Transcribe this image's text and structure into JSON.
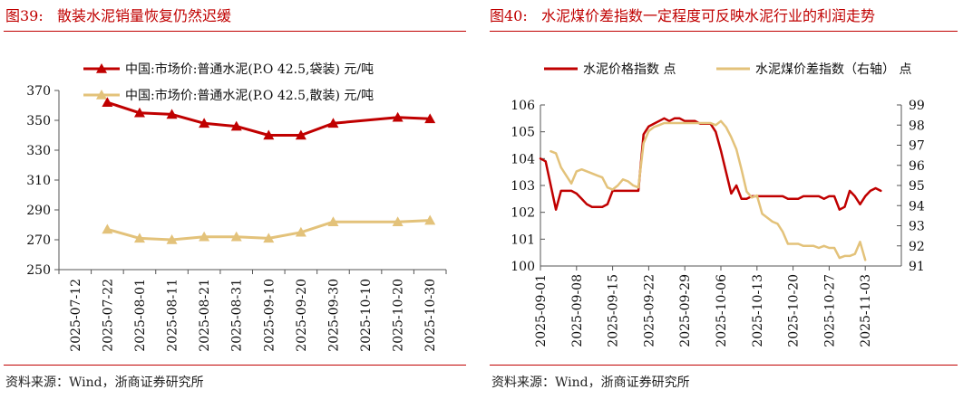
{
  "figure1": {
    "label": "图39:",
    "title": "散装水泥销量恢复仍然迟缓",
    "source": "资料来源：Wind，浙商证券研究所"
  },
  "figure2": {
    "label": "图40:",
    "title": "水泥煤价差指数一定程度可反映水泥行业的利润走势",
    "source": "资料来源：Wind，浙商证券研究所"
  },
  "colors": {
    "red": "#c00000",
    "gold": "#e3c27a",
    "axis": "#555555"
  },
  "chart_data": [
    {
      "type": "line",
      "title": "散装水泥销量恢复仍然迟缓",
      "xlabel": "",
      "ylabel": "",
      "ylim": [
        250,
        370
      ],
      "yticks": [
        250,
        270,
        290,
        310,
        330,
        350,
        370
      ],
      "categories": [
        "2025-07-12",
        "2025-07-22",
        "2025-08-01",
        "2025-08-11",
        "2025-08-21",
        "2025-08-31",
        "2025-09-10",
        "2025-09-20",
        "2025-09-30",
        "2025-10-10",
        "2025-10-20",
        "2025-10-30"
      ],
      "legend_position": "top-left",
      "series": [
        {
          "name": "中国:市场价:普通水泥(P.O 42.5,袋装) 元/吨",
          "color": "#c00000",
          "marker": "triangle",
          "values": [
            null,
            362,
            355,
            354,
            348,
            346,
            340,
            340,
            348,
            null,
            352,
            351
          ]
        },
        {
          "name": "中国:市场价:普通水泥(P.O 42.5,散装) 元/吨",
          "color": "#e3c27a",
          "marker": "triangle",
          "values": [
            null,
            277,
            271,
            270,
            272,
            272,
            271,
            275,
            282,
            null,
            282,
            283
          ]
        }
      ]
    },
    {
      "type": "line",
      "title": "水泥煤价差指数一定程度可反映水泥行业的利润走势",
      "legend_position": "top-left",
      "left_axis": {
        "ylim": [
          100,
          106
        ],
        "ticks": [
          100,
          101,
          102,
          103,
          104,
          105,
          106
        ]
      },
      "right_axis": {
        "ylim": [
          91,
          99
        ],
        "ticks": [
          91,
          92,
          93,
          94,
          95,
          96,
          97,
          98,
          99
        ]
      },
      "xlim": [
        0,
        70
      ],
      "x_tick_positions": [
        0,
        7,
        14,
        21,
        28,
        35,
        42,
        49,
        56,
        63
      ],
      "x_ticks": [
        "2025-09-01",
        "2025-09-08",
        "2025-09-15",
        "2025-09-22",
        "2025-09-29",
        "2025-10-06",
        "2025-10-13",
        "2025-10-20",
        "2025-10-27",
        "2025-11-03"
      ],
      "series": [
        {
          "name": "水泥价格指数 点",
          "color": "#c00000",
          "axis": "left",
          "x": [
            0,
            1,
            2,
            3,
            4,
            5,
            6,
            7,
            8,
            9,
            10,
            11,
            12,
            13,
            14,
            15,
            16,
            17,
            18,
            19,
            20,
            21,
            22,
            23,
            24,
            25,
            26,
            27,
            28,
            29,
            30,
            31,
            32,
            33,
            34,
            35,
            36,
            37,
            38,
            39,
            40,
            41,
            42,
            43,
            44,
            45,
            46,
            47,
            48,
            49,
            50,
            51,
            52,
            53,
            54,
            55,
            56,
            57,
            58,
            59,
            60,
            61,
            62,
            63,
            64,
            65,
            66
          ],
          "y": [
            104.0,
            103.9,
            103.0,
            102.1,
            102.8,
            102.8,
            102.8,
            102.7,
            102.5,
            102.3,
            102.2,
            102.2,
            102.2,
            102.3,
            102.8,
            102.8,
            102.8,
            102.8,
            102.8,
            102.8,
            104.9,
            105.2,
            105.3,
            105.4,
            105.5,
            105.4,
            105.5,
            105.5,
            105.4,
            105.4,
            105.4,
            105.3,
            105.3,
            105.3,
            105.0,
            104.3,
            103.5,
            102.7,
            103.0,
            102.5,
            102.5,
            102.6,
            102.6,
            102.6,
            102.6,
            102.6,
            102.6,
            102.6,
            102.5,
            102.5,
            102.5,
            102.6,
            102.6,
            102.6,
            102.6,
            102.5,
            102.6,
            102.6,
            102.1,
            102.2,
            102.8,
            102.6,
            102.3,
            102.6,
            102.8,
            102.9,
            102.8
          ]
        },
        {
          "name": "水泥煤价差指数（右轴） 点",
          "color": "#e3c27a",
          "axis": "right",
          "x": [
            2,
            3,
            4,
            5,
            6,
            7,
            8,
            9,
            10,
            11,
            12,
            13,
            14,
            15,
            16,
            17,
            18,
            19,
            20,
            21,
            22,
            23,
            24,
            25,
            26,
            27,
            28,
            29,
            30,
            31,
            32,
            33,
            34,
            35,
            36,
            37,
            38,
            39,
            40,
            41,
            42,
            43,
            44,
            45,
            46,
            47,
            48,
            49,
            50,
            51,
            52,
            53,
            54,
            55,
            56,
            57,
            58,
            59,
            60,
            61,
            62,
            63,
            64,
            65
          ],
          "y": [
            96.7,
            96.6,
            95.9,
            95.5,
            95.1,
            95.7,
            95.8,
            95.7,
            95.6,
            95.5,
            95.4,
            94.9,
            94.8,
            95.0,
            95.3,
            95.2,
            95.0,
            94.9,
            97.1,
            97.7,
            97.9,
            98.0,
            98.1,
            98.1,
            98.1,
            98.1,
            98.1,
            98.1,
            98.1,
            98.1,
            98.1,
            98.1,
            98.0,
            98.2,
            97.9,
            97.4,
            96.8,
            95.8,
            94.7,
            94.4,
            94.5,
            93.6,
            93.4,
            93.2,
            93.1,
            92.7,
            92.1,
            92.1,
            92.1,
            92.0,
            92.0,
            92.0,
            91.9,
            92.0,
            91.9,
            91.9,
            91.4,
            91.5,
            91.5,
            91.6,
            92.2,
            91.3,
            null,
            null
          ]
        }
      ]
    }
  ]
}
